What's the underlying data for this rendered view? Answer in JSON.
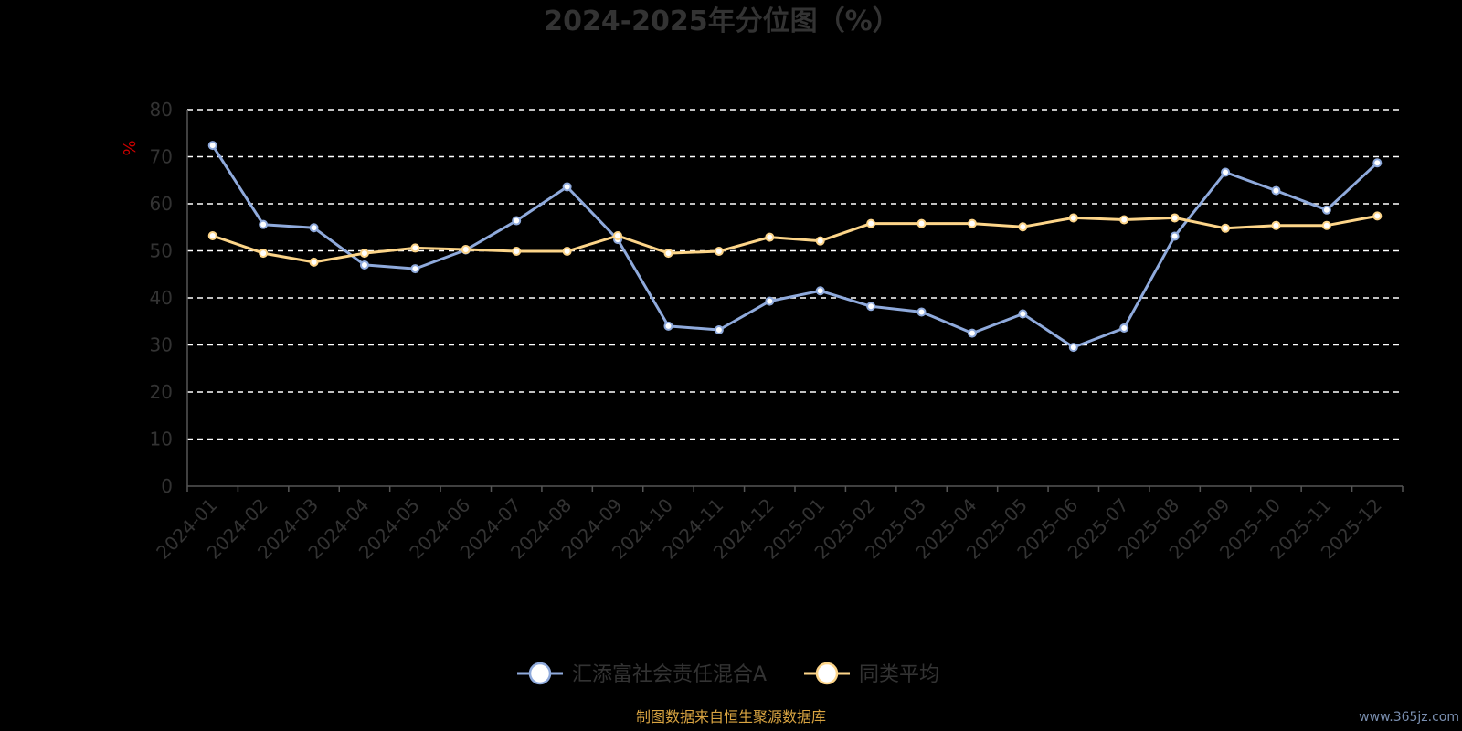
{
  "chart_data": {
    "type": "line",
    "title": "2024-2025年分位图（%）",
    "ylabel": "%",
    "xlabel": "",
    "ylim": [
      0,
      80
    ],
    "yticks": [
      0,
      10,
      20,
      30,
      40,
      50,
      60,
      70,
      80
    ],
    "grid": true,
    "legend_position": "bottom",
    "categories": [
      "2024-01",
      "2024-02",
      "2024-03",
      "2024-04",
      "2024-05",
      "2024-06",
      "2024-07",
      "2024-08",
      "2024-09",
      "2024-10",
      "2024-11",
      "2024-12",
      "2025-01",
      "2025-02",
      "2025-03",
      "2025-04",
      "2025-05",
      "2025-06",
      "2025-07",
      "2025-08",
      "2025-09",
      "2025-10",
      "2025-11",
      "2025-12"
    ],
    "series": [
      {
        "name": "汇添富社会责任混合A",
        "color": "#8faadc",
        "values": [
          72.4,
          55.6,
          54.9,
          47.0,
          46.2,
          50.2,
          56.4,
          63.6,
          52.4,
          34.0,
          33.2,
          39.3,
          41.5,
          38.2,
          37.0,
          32.5,
          36.6,
          29.5,
          33.6,
          53.1,
          66.7,
          62.8,
          58.7,
          68.7
        ]
      },
      {
        "name": "同类平均",
        "color": "#fdd589",
        "values": [
          53.2,
          49.5,
          47.6,
          49.5,
          50.6,
          50.3,
          49.9,
          49.9,
          53.2,
          49.5,
          49.9,
          52.9,
          52.1,
          55.8,
          55.8,
          55.8,
          55.1,
          57.0,
          56.6,
          57.0,
          54.8,
          55.4,
          55.4,
          57.4
        ]
      }
    ]
  },
  "source_note": "制图数据来自恒生聚源数据库",
  "watermark": "www.365jz.com"
}
